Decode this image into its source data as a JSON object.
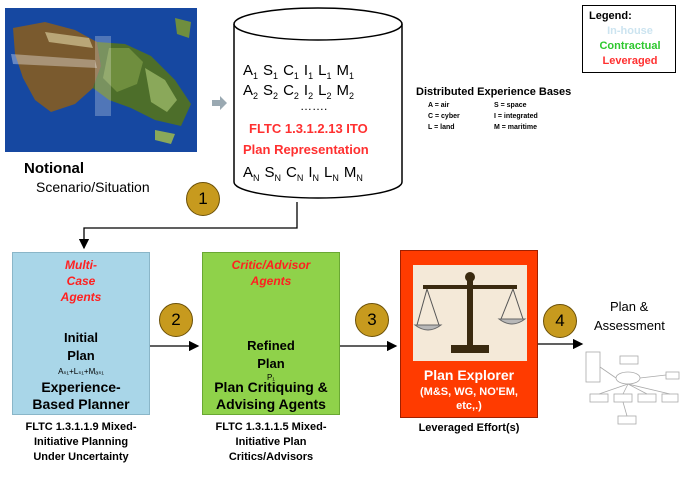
{
  "legend": {
    "title": "Legend:",
    "in_house": "In-house",
    "contractual": "Contractual",
    "leveraged": "Leveraged",
    "colors": {
      "in_house": "#cce4f0",
      "contractual": "#2ec82e",
      "leveraged": "#ff3030"
    }
  },
  "scenario": {
    "line1": "Notional",
    "line2": "Scenario/Situation"
  },
  "database": {
    "row1": [
      {
        "t": "A",
        "s": "1"
      },
      {
        "t": "S",
        "s": "1"
      },
      {
        "t": "C",
        "s": "1"
      },
      {
        "t": "I",
        "s": "1"
      },
      {
        "t": "L",
        "s": "1"
      },
      {
        "t": "M",
        "s": "1"
      }
    ],
    "row2": [
      {
        "t": "A",
        "s": "2"
      },
      {
        "t": "S",
        "s": "2"
      },
      {
        "t": "C",
        "s": "2"
      },
      {
        "t": "I",
        "s": "2"
      },
      {
        "t": "L",
        "s": "2"
      },
      {
        "t": "M",
        "s": "2"
      }
    ],
    "ellipsis": "…….",
    "flt_label": "FLTC 1.3.1.2.13 ITO",
    "plan_label": "Plan Representation",
    "rowN": [
      {
        "t": "A",
        "s": "N"
      },
      {
        "t": "S",
        "s": "N"
      },
      {
        "t": "C",
        "s": "N"
      },
      {
        "t": "I",
        "s": "N"
      },
      {
        "t": "L",
        "s": "N"
      },
      {
        "t": "M",
        "s": "N"
      }
    ]
  },
  "distributed": {
    "title": "Distributed Experience Bases",
    "keys": [
      [
        "A = air",
        "S = space"
      ],
      [
        "C = cyber",
        "I = integrated"
      ],
      [
        "L = land",
        "M = maritime"
      ]
    ]
  },
  "steps": [
    "1",
    "2",
    "3",
    "4"
  ],
  "box1": {
    "label": "Multi-Case Agents",
    "label_l1": "Multi-",
    "label_l2": "Case",
    "label_l3": "Agents",
    "plan_l1": "Initial",
    "plan_l2": "Plan",
    "formula": "Aₛ₁+Lₛ₁+Mₐₛ₁",
    "title_l1": "Experience-",
    "title_l2": "Based Planner",
    "caption": [
      "FLTC 1.3.1.1.9 Mixed-",
      "Initiative Planning",
      "Under Uncertainty"
    ],
    "color": "#a9d6e8"
  },
  "box2": {
    "label_l1": "Critic/Advisor",
    "label_l2": "Agents",
    "plan_l1": "Refined",
    "plan_l2": "Plan",
    "sub": "P₁",
    "title_l1": "Plan Critiquing &",
    "title_l2": "Advising Agents",
    "caption": [
      "FLTC 1.3.1.1.5 Mixed-",
      "Initiative Plan",
      "Critics/Advisors"
    ],
    "color": "#8fd24a"
  },
  "box3": {
    "title": "Plan Explorer",
    "sub_l1": "(M&S, WG, NO'EM,",
    "sub_l2": "etc,.)",
    "caption": "Leveraged Effort(s)",
    "color": "#ff3b00"
  },
  "output": {
    "line1": "Plan &",
    "line2": "Assessment"
  }
}
